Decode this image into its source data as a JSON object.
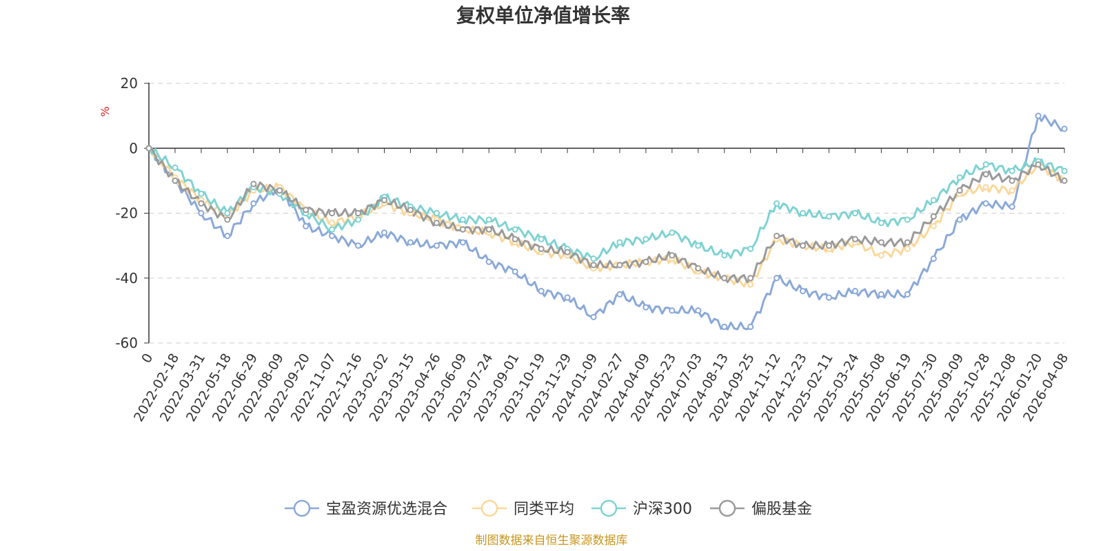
{
  "chart_data": {
    "type": "line",
    "title": "复权单位净值增长率",
    "ylabel": "%",
    "xlabel": "",
    "ylim": [
      -60,
      20
    ],
    "yticks": [
      20,
      0,
      -20,
      -40,
      -60
    ],
    "grid": true,
    "legend_position": "bottom",
    "categories": [
      "0",
      "2022-02-18",
      "2022-03-31",
      "2022-05-18",
      "2022-06-29",
      "2022-08-09",
      "2022-09-20",
      "2022-11-07",
      "2022-12-16",
      "2023-02-02",
      "2023-03-15",
      "2023-04-26",
      "2023-06-09",
      "2023-07-24",
      "2023-09-01",
      "2023-10-19",
      "2023-11-29",
      "2024-01-09",
      "2024-02-27",
      "2024-04-09",
      "2024-05-23",
      "2024-07-03",
      "2024-08-13",
      "2024-09-25",
      "2024-11-12",
      "2024-12-23",
      "2025-02-11",
      "2025-03-24",
      "2025-05-08",
      "2025-06-19",
      "2025-07-30",
      "2025-09-09",
      "2025-10-28",
      "2025-12-08",
      "2026-01-20",
      "2026-04-08"
    ],
    "series": [
      {
        "name": "宝盈资源优选混合",
        "color": "#8aa9d8",
        "values": [
          0,
          -10,
          -20,
          -27,
          -17,
          -12,
          -24,
          -27,
          -30,
          -26,
          -29,
          -30,
          -29,
          -35,
          -38,
          -44,
          -46,
          -52,
          -45,
          -49,
          -50,
          -50,
          -55,
          -55,
          -40,
          -44,
          -46,
          -44,
          -45,
          -45,
          -34,
          -22,
          -17,
          -18,
          10,
          6
        ]
      },
      {
        "name": "同类平均",
        "color": "#fbd79a",
        "values": [
          0,
          -9,
          -16,
          -21,
          -13,
          -12,
          -19,
          -23,
          -21,
          -17,
          -20,
          -22,
          -25,
          -26,
          -29,
          -32,
          -33,
          -37,
          -36,
          -35,
          -34,
          -38,
          -40,
          -42,
          -28,
          -30,
          -31,
          -29,
          -33,
          -31,
          -24,
          -14,
          -12,
          -13,
          -5,
          -10
        ]
      },
      {
        "name": "沪深300",
        "color": "#7fd2d2",
        "values": [
          0,
          -6,
          -14,
          -20,
          -12,
          -14,
          -20,
          -25,
          -22,
          -15,
          -18,
          -20,
          -22,
          -22,
          -25,
          -28,
          -31,
          -34,
          -29,
          -28,
          -26,
          -30,
          -33,
          -31,
          -17,
          -20,
          -21,
          -20,
          -23,
          -22,
          -16,
          -9,
          -5,
          -7,
          -4,
          -7
        ]
      },
      {
        "name": "偏股基金",
        "color": "#9a9a9a",
        "values": [
          0,
          -10,
          -17,
          -22,
          -11,
          -13,
          -19,
          -20,
          -20,
          -16,
          -19,
          -23,
          -25,
          -25,
          -28,
          -31,
          -32,
          -36,
          -36,
          -35,
          -33,
          -37,
          -40,
          -40,
          -27,
          -30,
          -30,
          -28,
          -29,
          -29,
          -21,
          -13,
          -8,
          -10,
          -5,
          -10
        ]
      }
    ]
  },
  "source_text": "制图数据来自恒生聚源数据库"
}
